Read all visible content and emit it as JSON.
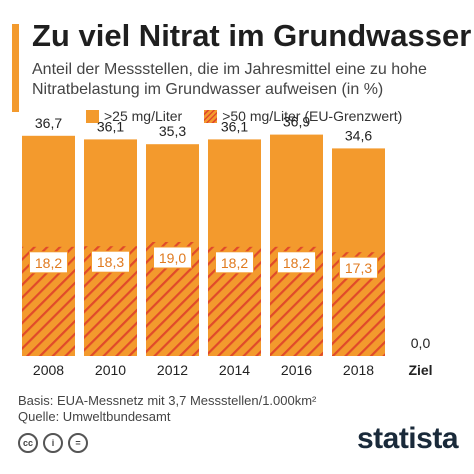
{
  "header": {
    "title": "Zu viel Nitrat im Grundwasser",
    "subtitle": "Anteil der Messstellen, die im Jahresmittel eine zu hohe Nitratbelastung im Grundwasser aufweisen (in %)"
  },
  "colors": {
    "accent": "#f39a2d",
    "bar": "#f39a2d",
    "hatch": "#e04a2a"
  },
  "legend": {
    "items": [
      {
        "label": ">25 mg/Liter",
        "style": "solid"
      },
      {
        "label": ">50 mg/Liter (EU-Grenzwert)",
        "style": "hatched"
      }
    ],
    "placement": "top"
  },
  "chart_data": {
    "type": "bar",
    "categories": [
      "2008",
      "2010",
      "2012",
      "2014",
      "2016",
      "2018",
      "Ziel"
    ],
    "series": [
      {
        "name": ">25 mg/Liter",
        "values": [
          36.7,
          36.1,
          35.3,
          36.1,
          36.9,
          34.6,
          0.0
        ]
      },
      {
        "name": ">50 mg/Liter (EU-Grenzwert)",
        "values": [
          18.2,
          18.3,
          19.0,
          18.2,
          18.2,
          17.3,
          null
        ]
      }
    ],
    "value_labels_outer": [
      "36,7",
      "36,1",
      "35,3",
      "36,1",
      "36,9",
      "34,6",
      "0,0"
    ],
    "value_labels_inner": [
      "18,2",
      "18,3",
      "19,0",
      "18,2",
      "18,2",
      "17,3",
      ""
    ],
    "ylim": [
      0,
      40
    ],
    "grid": false,
    "xlabel": "",
    "ylabel": ""
  },
  "footer": {
    "basis": "Basis: EUA-Messnetz mit 3,7 Messstellen/1.000km²",
    "source": "Quelle: Umweltbundesamt",
    "license_icons": [
      "cc-icon",
      "person-icon",
      "equal-icon"
    ],
    "license_glyphs": [
      "cc",
      "i",
      "="
    ],
    "logo": "statista"
  }
}
